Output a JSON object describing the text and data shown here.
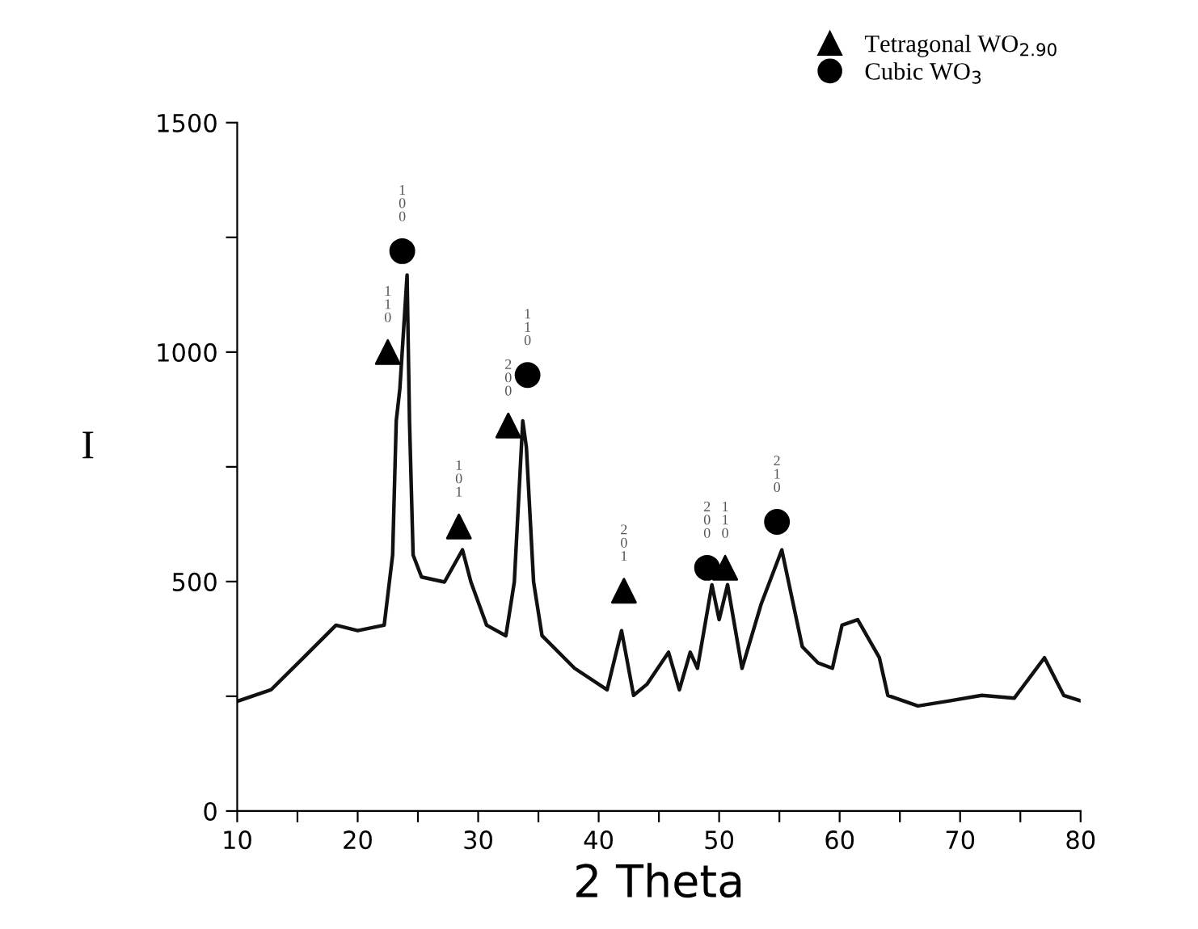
{
  "chart_data": {
    "type": "line",
    "xlabel": "2 Theta",
    "ylabel": "I",
    "xlim": [
      10,
      80
    ],
    "ylim": [
      0,
      1500
    ],
    "xticks": [
      10,
      {
        "value": 15,
        "label": null
      },
      20,
      {
        "value": 25,
        "label": null
      },
      30,
      {
        "value": 35,
        "label": null
      },
      40,
      {
        "value": 45,
        "label": null
      },
      50,
      {
        "value": 55,
        "label": null
      },
      60,
      {
        "value": 65,
        "label": null
      },
      70,
      {
        "value": 75,
        "label": null
      },
      80
    ],
    "yticks": [
      0,
      {
        "value": 250,
        "label": null
      },
      500,
      {
        "value": 750,
        "label": null
      },
      1000,
      {
        "value": 1250,
        "label": null
      },
      1500
    ],
    "grid": false,
    "legend": "top right",
    "series": [
      {
        "color": "#111111",
        "marker": "none",
        "line_style": "solid",
        "x": [
          10.1,
          12.8,
          15.5,
          18.2,
          20.0,
          22.2,
          22.9,
          23.2,
          23.5,
          24.1,
          24.3,
          24.6,
          25.3,
          27.2,
          28.7,
          29.4,
          30.7,
          32.3,
          33.0,
          33.7,
          34.0,
          34.6,
          35.3,
          38.0,
          40.7,
          41.9,
          42.9,
          44.0,
          45.8,
          46.7,
          47.6,
          48.2,
          49.4,
          50.0,
          50.7,
          51.9,
          53.5,
          55.2,
          56.9,
          58.2,
          59.4,
          60.2,
          61.5,
          63.3,
          64.0,
          66.5,
          69.1,
          71.8,
          74.5,
          77.0,
          78.6,
          80.0
        ],
        "values": [
          240,
          264,
          334,
          405,
          393,
          405,
          558,
          850,
          920,
          1168,
          850,
          558,
          510,
          499,
          569,
          499,
          405,
          382,
          499,
          850,
          793,
          499,
          382,
          311,
          264,
          393,
          252,
          276,
          346,
          264,
          346,
          311,
          493,
          417,
          493,
          311,
          452,
          569,
          358,
          323,
          311,
          405,
          417,
          334,
          252,
          229,
          240,
          252,
          246,
          334,
          252,
          240
        ]
      },
      {
        "type": "scatter",
        "name": "Tetragonal WO$_{2.90}$",
        "color": "#000000",
        "marker": "triangle",
        "x": [
          22.5,
          28.4,
          32.5,
          42.1,
          50.5
        ],
        "values": [
          1000,
          620,
          840,
          480,
          530
        ]
      },
      {
        "type": "scatter",
        "name": "Cubic WO$_{3}$",
        "color": "#000000",
        "marker": "circle",
        "x": [
          23.7,
          34.1,
          49.0,
          54.8
        ],
        "values": [
          1220,
          950,
          530,
          630
        ]
      }
    ],
    "annotations": [
      {
        "text": "110",
        "x": 22.5,
        "y": 1000
      },
      {
        "text": "100",
        "x": 23.7,
        "y": 1220
      },
      {
        "text": "101",
        "x": 28.4,
        "y": 620
      },
      {
        "text": "200",
        "x": 32.5,
        "y": 840
      },
      {
        "text": "110",
        "x": 34.1,
        "y": 950
      },
      {
        "text": "201",
        "x": 42.1,
        "y": 480
      },
      {
        "text": "200",
        "x": 49.0,
        "y": 530
      },
      {
        "text": "110",
        "x": 50.5,
        "y": 530
      },
      {
        "text": "210",
        "x": 54.8,
        "y": 630
      }
    ]
  }
}
